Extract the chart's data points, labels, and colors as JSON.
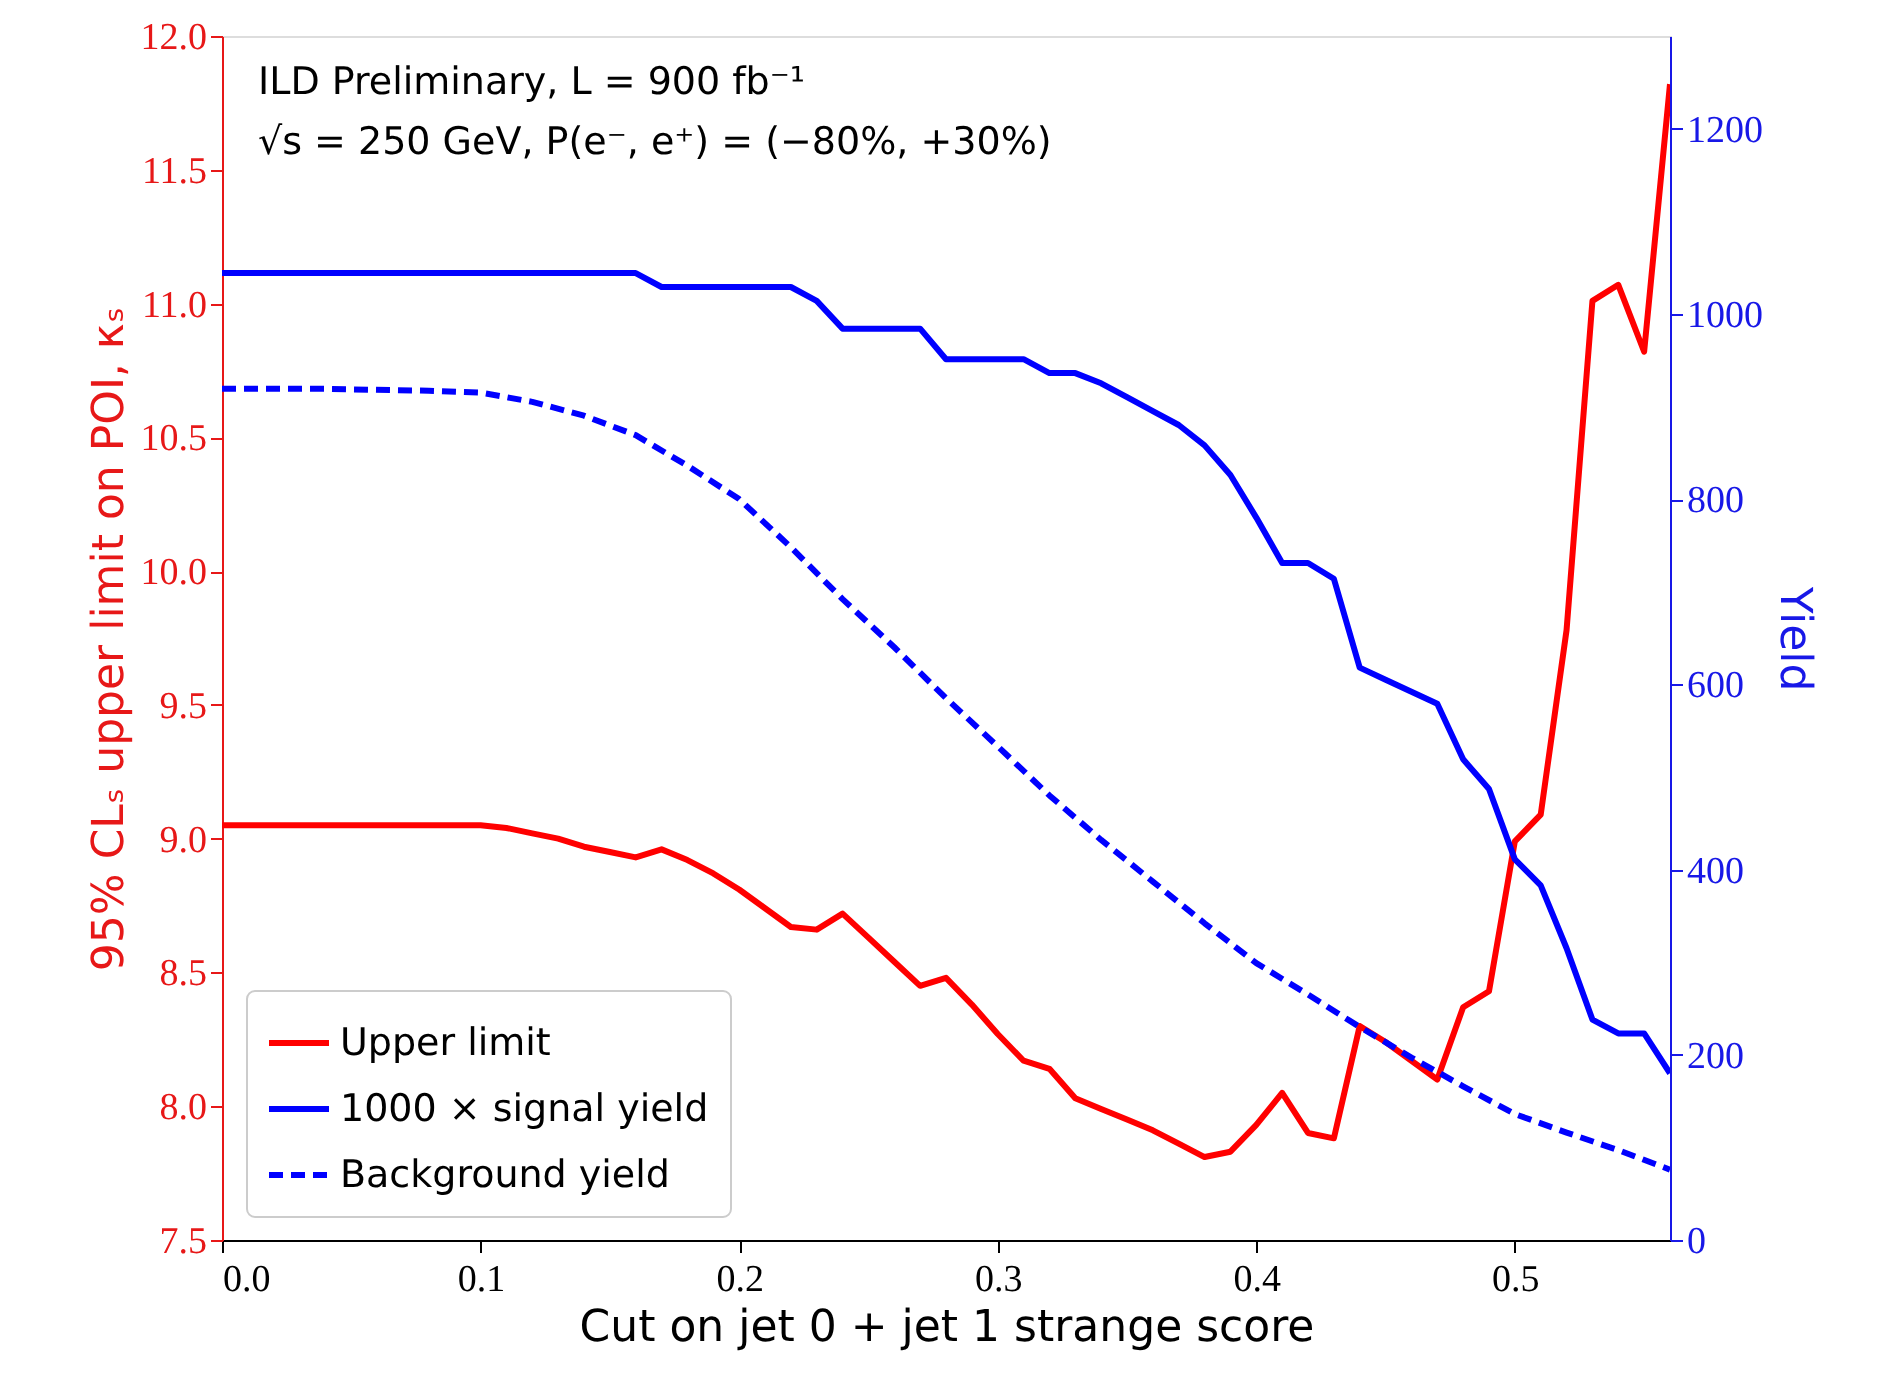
{
  "chart_data": {
    "type": "line",
    "xlabel": "Cut on jet 0 + jet 1 strange score",
    "ylabel": "95% CLₛ upper limit on POI, κₛ",
    "y2label": "Yield",
    "annotations": [
      "ILD Preliminary, L = 900 fb⁻¹",
      "√s = 250 GeV, P(e⁻, e⁺) = (−80%, +30%)"
    ],
    "xlim": [
      0,
      0.56
    ],
    "xticks": [
      {
        "value": 0,
        "label": "0.0"
      },
      {
        "value": 0.1,
        "label": "0.1"
      },
      {
        "value": 0.2,
        "label": "0.2"
      },
      {
        "value": 0.3,
        "label": "0.3"
      },
      {
        "value": 0.4,
        "label": "0.4"
      },
      {
        "value": 0.5,
        "label": "0.5"
      }
    ],
    "ylim": [
      7.5,
      12.0
    ],
    "yticks": [
      {
        "value": 7.5,
        "label": "7.5"
      },
      {
        "value": 8,
        "label": "8.0"
      },
      {
        "value": 8.5,
        "label": "8.5"
      },
      {
        "value": 9,
        "label": "9.0"
      },
      {
        "value": 9.5,
        "label": "9.5"
      },
      {
        "value": 10,
        "label": "10.0"
      },
      {
        "value": 10.5,
        "label": "10.5"
      },
      {
        "value": 11,
        "label": "11.0"
      },
      {
        "value": 11.5,
        "label": "11.5"
      },
      {
        "value": 12,
        "label": "12.0"
      }
    ],
    "y2lim": [
      0,
      1300
    ],
    "y2ticks": [
      0,
      200,
      400,
      600,
      800,
      1000,
      1200
    ],
    "grid": false,
    "legend": "bottom left",
    "series": [
      {
        "name": "Upper limit",
        "color": "#ff0000",
        "line_style": "solid",
        "x": [
          0,
          0.01,
          0.02,
          0.03,
          0.04,
          0.05,
          0.06,
          0.07,
          0.08,
          0.09,
          0.1,
          0.11,
          0.12,
          0.13,
          0.14,
          0.15,
          0.16,
          0.17,
          0.18,
          0.19,
          0.2,
          0.21,
          0.22,
          0.23,
          0.24,
          0.25,
          0.26,
          0.27,
          0.28,
          0.29,
          0.3,
          0.31,
          0.32,
          0.33,
          0.34,
          0.35,
          0.36,
          0.37,
          0.38,
          0.39,
          0.4,
          0.41,
          0.42,
          0.43,
          0.44,
          0.45,
          0.46,
          0.47,
          0.48,
          0.49,
          0.5,
          0.51,
          0.52,
          0.53,
          0.54,
          0.55,
          0.56
        ],
        "values": [
          9.05,
          9.05,
          9.05,
          9.05,
          9.05,
          9.05,
          9.05,
          9.05,
          9.05,
          9.05,
          9.05,
          9.04,
          9.02,
          9.0,
          8.97,
          8.95,
          8.93,
          8.96,
          8.92,
          8.87,
          8.81,
          8.74,
          8.67,
          8.66,
          8.72,
          8.63,
          8.54,
          8.45,
          8.48,
          8.38,
          8.27,
          8.17,
          8.14,
          8.03,
          7.99,
          7.95,
          7.91,
          7.86,
          7.81,
          7.83,
          7.93,
          8.05,
          7.9,
          7.88,
          8.3,
          8.24,
          8.17,
          8.1,
          8.37,
          8.43,
          8.99,
          9.09,
          9.78,
          11.01,
          11.07,
          10.82,
          11.82
        ]
      },
      {
        "name": "1000 × signal yield",
        "color": "#0000ff",
        "line_style": "solid",
        "axis": "y2",
        "x": [
          0,
          0.16,
          0.17,
          0.22,
          0.23,
          0.24,
          0.27,
          0.28,
          0.31,
          0.32,
          0.33,
          0.34,
          0.35,
          0.36,
          0.37,
          0.38,
          0.39,
          0.4,
          0.41,
          0.42,
          0.43,
          0.44,
          0.45,
          0.46,
          0.47,
          0.48,
          0.49,
          0.5,
          0.51,
          0.52,
          0.53,
          0.54,
          0.55,
          0.56
        ],
        "values": [
          1044,
          1044,
          1029,
          1029,
          1014,
          984,
          984,
          951,
          951,
          936,
          936,
          925,
          910,
          895,
          880,
          858,
          826,
          780,
          731,
          731,
          714,
          618,
          605,
          592,
          579,
          519,
          487,
          411,
          383,
          315,
          238,
          223,
          223,
          180
        ]
      },
      {
        "name": "Background yield",
        "color": "#0000ff",
        "line_style": "dashed",
        "axis": "y2",
        "x": [
          0,
          0.04,
          0.08,
          0.1,
          0.12,
          0.14,
          0.16,
          0.18,
          0.2,
          0.22,
          0.24,
          0.26,
          0.28,
          0.3,
          0.32,
          0.34,
          0.36,
          0.38,
          0.4,
          0.42,
          0.44,
          0.46,
          0.48,
          0.5,
          0.52,
          0.54,
          0.56
        ],
        "values": [
          919,
          919,
          917,
          915,
          905,
          890,
          869,
          836,
          800,
          748,
          692,
          640,
          585,
          533,
          480,
          432,
          387,
          342,
          299,
          265,
          230,
          197,
          166,
          136,
          116,
          97,
          76
        ]
      }
    ]
  }
}
